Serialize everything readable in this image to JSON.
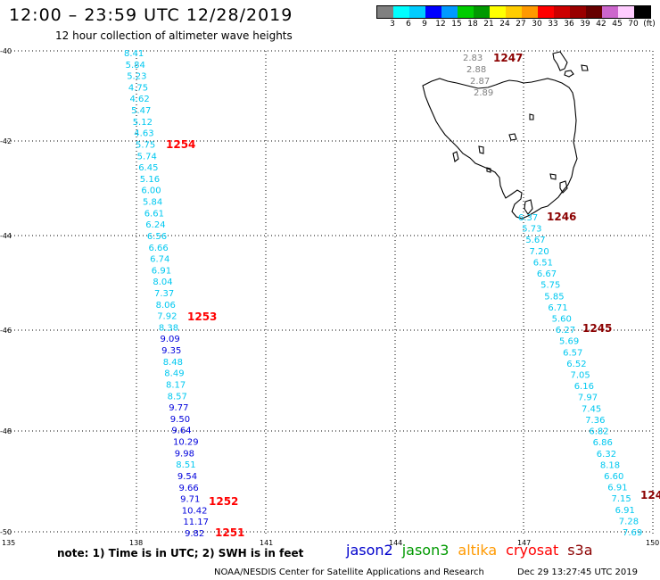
{
  "header": {
    "title": "12:00 – 23:59 UTC 12/28/2019",
    "subtitle": "12 hour collection of altimeter wave heights"
  },
  "legend": {
    "colors": [
      "#808080",
      "#00ffff",
      "#00ccff",
      "#0000ff",
      "#0099ff",
      "#00cc00",
      "#009900",
      "#ffff00",
      "#ffcc00",
      "#ff9900",
      "#ff0000",
      "#cc0000",
      "#990000",
      "#660000",
      "#cc66cc",
      "#ffccff",
      "#000000"
    ],
    "labels": [
      "3",
      "6",
      "9",
      "12",
      "15",
      "18",
      "21",
      "24",
      "27",
      "30",
      "33",
      "36",
      "39",
      "42",
      "45",
      "70",
      "(ft)"
    ]
  },
  "axes": {
    "lat_labels": [
      "-40",
      "-42",
      "-44",
      "-46",
      "-48",
      "-50"
    ],
    "lon_labels": [
      "135",
      "138",
      "141",
      "144",
      "147",
      "150"
    ]
  },
  "colors": {
    "cyan": "#00c8f0",
    "lightblue": "#3ca0f0",
    "blue": "#0000dc",
    "gray": "#808080",
    "pass_red": "#ff0000",
    "pass_dark": "#8b0000",
    "land": "#000000"
  },
  "track_west": {
    "values": [
      "8.41",
      "5.84",
      "5.23",
      "4.75",
      "4.62",
      "5.47",
      "5.12",
      "4.63",
      "5.75",
      "5.74",
      "6.45",
      "5.16",
      "6.00",
      "5.84",
      "6.61",
      "6.24",
      "6.56",
      "6.66",
      "6.74",
      "6.91",
      "8.04",
      "7.37",
      "8.06",
      "7.92",
      "8.38",
      "9.09",
      "9.35",
      "8.48",
      "8.49",
      "8.17",
      "8.57",
      "9.77",
      "9.50",
      "9.64",
      "10.29",
      "9.98",
      "8.51",
      "9.54",
      "9.66",
      "9.71",
      "10.42",
      "11.17",
      "9.82"
    ],
    "colors": [
      "c",
      "c",
      "c",
      "c",
      "c",
      "c",
      "c",
      "c",
      "c",
      "c",
      "c",
      "c",
      "c",
      "c",
      "c",
      "c",
      "c",
      "c",
      "c",
      "c",
      "c",
      "c",
      "c",
      "c",
      "c",
      "b",
      "b",
      "c",
      "c",
      "c",
      "c",
      "b",
      "b",
      "b",
      "b",
      "b",
      "c",
      "b",
      "b",
      "b",
      "b",
      "b",
      "b"
    ]
  },
  "track_east": {
    "values": [
      "6.37",
      "5.73",
      "5.67",
      "7.20",
      "6.51",
      "6.67",
      "5.75",
      "5.85",
      "6.71",
      "5.60",
      "6.27",
      "5.69",
      "6.57",
      "6.52",
      "7.05",
      "6.16",
      "7.97",
      "7.45",
      "7.36",
      "6.82",
      "6.86",
      "6.32",
      "8.18",
      "6.60",
      "6.91",
      "7.15",
      "6.91",
      "7.28",
      "7.69"
    ]
  },
  "track_north": {
    "values": [
      "2.83",
      "2.88",
      "2.87",
      "2.89"
    ]
  },
  "passes": [
    {
      "id": "p1247",
      "text": "1247",
      "color": "pass_dark"
    },
    {
      "id": "p1254",
      "text": "1254",
      "color": "pass_red"
    },
    {
      "id": "p1246",
      "text": "1246",
      "color": "pass_dark"
    },
    {
      "id": "p1253",
      "text": "1253",
      "color": "pass_red"
    },
    {
      "id": "p1245",
      "text": "1245",
      "color": "pass_dark"
    },
    {
      "id": "p1252",
      "text": "1252",
      "color": "pass_red"
    },
    {
      "id": "p1251",
      "text": "1251",
      "color": "pass_red"
    },
    {
      "id": "p124x",
      "text": "124",
      "color": "pass_dark"
    }
  ],
  "footer": {
    "note": "note: 1) Time is in UTC; 2) SWH is in feet",
    "satellites": [
      {
        "name": "jason2",
        "color": "#0000cc"
      },
      {
        "name": "jason3",
        "color": "#009900"
      },
      {
        "name": "altika",
        "color": "#ff9900"
      },
      {
        "name": "cryosat",
        "color": "#ff0000"
      },
      {
        "name": "s3a",
        "color": "#8b0000"
      }
    ],
    "credit": "NOAA/NESDIS Center for Satellite Applications and Research",
    "timestamp": "Dec 29 13:27:45 UTC 2019"
  }
}
